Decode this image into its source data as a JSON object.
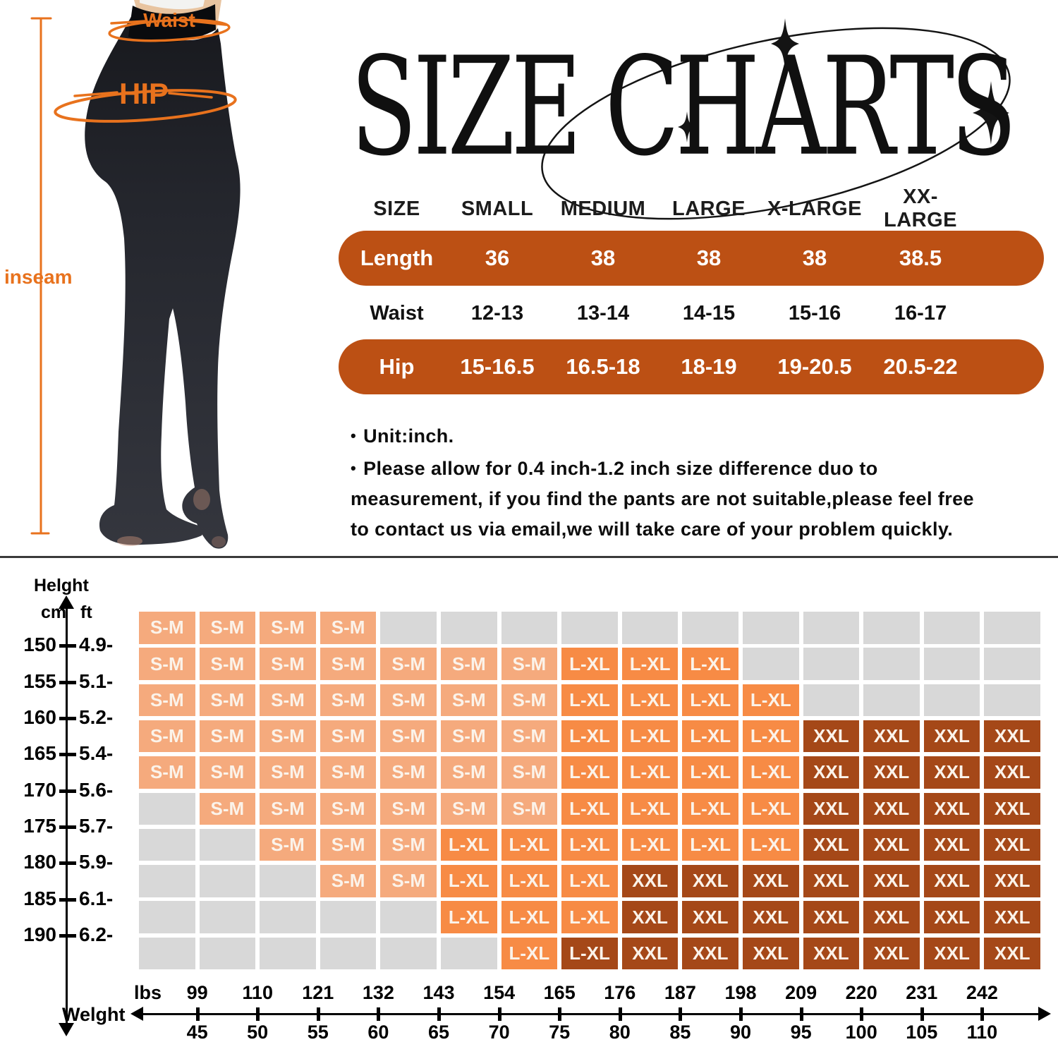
{
  "title": {
    "text": "SIZE CHARTS"
  },
  "figure": {
    "waist_label": "Waist",
    "hip_label": "HIP",
    "inseam_label": "inseam",
    "accent": "#E8721D"
  },
  "size_table": {
    "pill_color": "#BC5014",
    "columns": [
      "SIZE",
      "SMALL",
      "MEDIUM",
      "LARGE",
      "X-LARGE",
      "XX-LARGE"
    ],
    "rows": [
      {
        "label": "Length",
        "style": "pill",
        "values": [
          "36",
          "38",
          "38",
          "38",
          "38.5"
        ]
      },
      {
        "label": "Waist",
        "style": "plain",
        "values": [
          "12-13",
          "13-14",
          "14-15",
          "15-16",
          "16-17"
        ]
      },
      {
        "label": "Hip",
        "style": "pill",
        "values": [
          "15-16.5",
          "16.5-18",
          "18-19",
          "19-20.5",
          "20.5-22"
        ]
      }
    ]
  },
  "notes": {
    "bullet_char": "•",
    "bullet1": "Unit:inch.",
    "bullet2": "Please allow for 0.4 inch-1.2 inch size difference duo to measurement, if you find the pants are not suitable,please feel free to contact us via email,we will take care of your problem quickly."
  },
  "chart": {
    "height_title": "Helght",
    "cm_label": "cm",
    "ft_label": "ft",
    "weight_title": "Welght",
    "lbs_label": "lbs",
    "heights_cm": [
      "150",
      "155",
      "160",
      "165",
      "170",
      "175",
      "180",
      "185",
      "190"
    ],
    "heights_ft": [
      "4.9-",
      "5.1-",
      "5.2-",
      "5.4-",
      "5.6-",
      "5.7-",
      "5.9-",
      "6.1-",
      "6.2-"
    ],
    "weights_lbs": [
      "99",
      "110",
      "121",
      "132",
      "143",
      "154",
      "165",
      "176",
      "187",
      "198",
      "209",
      "220",
      "231",
      "242"
    ],
    "weights_kg": [
      "45",
      "50",
      "55",
      "60",
      "65",
      "70",
      "75",
      "80",
      "85",
      "90",
      "95",
      "100",
      "105",
      "110"
    ],
    "legend": {
      "SM": {
        "label": "S-M",
        "color": "#F5AA7D"
      },
      "LXL": {
        "label": "L-XL",
        "color": "#F78B45"
      },
      "XXL": {
        "label": "XXL",
        "color": "#A54818"
      },
      "LXLD": {
        "label": "L-XL",
        "color": "#A54818"
      },
      "E": {
        "label": "",
        "color": "#D8D8D8"
      }
    },
    "grid": [
      [
        "SM",
        "SM",
        "SM",
        "SM",
        "E",
        "E",
        "E",
        "E",
        "E",
        "E",
        "E",
        "E",
        "E",
        "E",
        "E"
      ],
      [
        "SM",
        "SM",
        "SM",
        "SM",
        "SM",
        "SM",
        "SM",
        "LXL",
        "LXL",
        "LXL",
        "E",
        "E",
        "E",
        "E",
        "E"
      ],
      [
        "SM",
        "SM",
        "SM",
        "SM",
        "SM",
        "SM",
        "SM",
        "LXL",
        "LXL",
        "LXL",
        "LXL",
        "E",
        "E",
        "E",
        "E"
      ],
      [
        "SM",
        "SM",
        "SM",
        "SM",
        "SM",
        "SM",
        "SM",
        "LXL",
        "LXL",
        "LXL",
        "LXL",
        "XXL",
        "XXL",
        "XXL",
        "XXL"
      ],
      [
        "SM",
        "SM",
        "SM",
        "SM",
        "SM",
        "SM",
        "SM",
        "LXL",
        "LXL",
        "LXL",
        "LXL",
        "XXL",
        "XXL",
        "XXL",
        "XXL"
      ],
      [
        "E",
        "SM",
        "SM",
        "SM",
        "SM",
        "SM",
        "SM",
        "LXL",
        "LXL",
        "LXL",
        "LXL",
        "XXL",
        "XXL",
        "XXL",
        "XXL"
      ],
      [
        "E",
        "E",
        "SM",
        "SM",
        "SM",
        "LXL",
        "LXL",
        "LXL",
        "LXL",
        "LXL",
        "LXL",
        "XXL",
        "XXL",
        "XXL",
        "XXL"
      ],
      [
        "E",
        "E",
        "E",
        "SM",
        "SM",
        "LXL",
        "LXL",
        "LXL",
        "XXL",
        "XXL",
        "XXL",
        "XXL",
        "XXL",
        "XXL",
        "XXL"
      ],
      [
        "E",
        "E",
        "E",
        "E",
        "E",
        "LXL",
        "LXL",
        "LXL",
        "XXL",
        "XXL",
        "XXL",
        "XXL",
        "XXL",
        "XXL",
        "XXL"
      ],
      [
        "E",
        "E",
        "E",
        "E",
        "E",
        "E",
        "LXL",
        "LXLD",
        "XXL",
        "XXL",
        "XXL",
        "XXL",
        "XXL",
        "XXL",
        "XXL"
      ]
    ]
  },
  "chart_data": [
    {
      "type": "table",
      "title": "SIZE CHARTS",
      "unit": "inch",
      "columns": [
        "SIZE",
        "SMALL",
        "MEDIUM",
        "LARGE",
        "X-LARGE",
        "XX-LARGE"
      ],
      "rows": [
        [
          "Length",
          "36",
          "38",
          "38",
          "38",
          "38.5"
        ],
        [
          "Waist",
          "12-13",
          "13-14",
          "14-15",
          "15-16",
          "16-17"
        ],
        [
          "Hip",
          "15-16.5",
          "16.5-18",
          "18-19",
          "19-20.5",
          "20.5-22"
        ]
      ]
    },
    {
      "type": "heatmap",
      "xlabel": "Welght (lbs / kg)",
      "ylabel": "Helght (cm / ft)",
      "x_lbs": [
        99,
        110,
        121,
        132,
        143,
        154,
        165,
        176,
        187,
        198,
        209,
        220,
        231,
        242
      ],
      "x_kg": [
        45,
        50,
        55,
        60,
        65,
        70,
        75,
        80,
        85,
        90,
        95,
        100,
        105,
        110
      ],
      "y_cm": [
        150,
        155,
        160,
        165,
        170,
        175,
        180,
        185,
        190
      ],
      "y_ft": [
        4.9,
        5.1,
        5.2,
        5.4,
        5.6,
        5.7,
        5.9,
        6.1,
        6.2
      ],
      "cell_colors": {
        "S-M": "#F5AA7D",
        "L-XL": "#F78B45",
        "XXL": "#A54818",
        "empty": "#D8D8D8"
      },
      "values": [
        [
          "S-M",
          "S-M",
          "S-M",
          "S-M",
          "",
          "",
          "",
          "",
          "",
          "",
          "",
          "",
          "",
          "",
          ""
        ],
        [
          "S-M",
          "S-M",
          "S-M",
          "S-M",
          "S-M",
          "S-M",
          "S-M",
          "L-XL",
          "L-XL",
          "L-XL",
          "",
          "",
          "",
          "",
          ""
        ],
        [
          "S-M",
          "S-M",
          "S-M",
          "S-M",
          "S-M",
          "S-M",
          "S-M",
          "L-XL",
          "L-XL",
          "L-XL",
          "L-XL",
          "",
          "",
          "",
          ""
        ],
        [
          "S-M",
          "S-M",
          "S-M",
          "S-M",
          "S-M",
          "S-M",
          "S-M",
          "L-XL",
          "L-XL",
          "L-XL",
          "L-XL",
          "XXL",
          "XXL",
          "XXL",
          "XXL"
        ],
        [
          "S-M",
          "S-M",
          "S-M",
          "S-M",
          "S-M",
          "S-M",
          "S-M",
          "L-XL",
          "L-XL",
          "L-XL",
          "L-XL",
          "XXL",
          "XXL",
          "XXL",
          "XXL"
        ],
        [
          "",
          "S-M",
          "S-M",
          "S-M",
          "S-M",
          "S-M",
          "S-M",
          "L-XL",
          "L-XL",
          "L-XL",
          "L-XL",
          "XXL",
          "XXL",
          "XXL",
          "XXL"
        ],
        [
          "",
          "",
          "S-M",
          "S-M",
          "S-M",
          "L-XL",
          "L-XL",
          "L-XL",
          "L-XL",
          "L-XL",
          "L-XL",
          "XXL",
          "XXL",
          "XXL",
          "XXL"
        ],
        [
          "",
          "",
          "",
          "S-M",
          "S-M",
          "L-XL",
          "L-XL",
          "L-XL",
          "XXL",
          "XXL",
          "XXL",
          "XXL",
          "XXL",
          "XXL",
          "XXL"
        ],
        [
          "",
          "",
          "",
          "",
          "",
          "L-XL",
          "L-XL",
          "L-XL",
          "XXL",
          "XXL",
          "XXL",
          "XXL",
          "XXL",
          "XXL",
          "XXL"
        ],
        [
          "",
          "",
          "",
          "",
          "",
          "",
          "L-XL",
          "L-XL",
          "XXL",
          "XXL",
          "XXL",
          "XXL",
          "XXL",
          "XXL",
          "XXL"
        ]
      ]
    }
  ]
}
